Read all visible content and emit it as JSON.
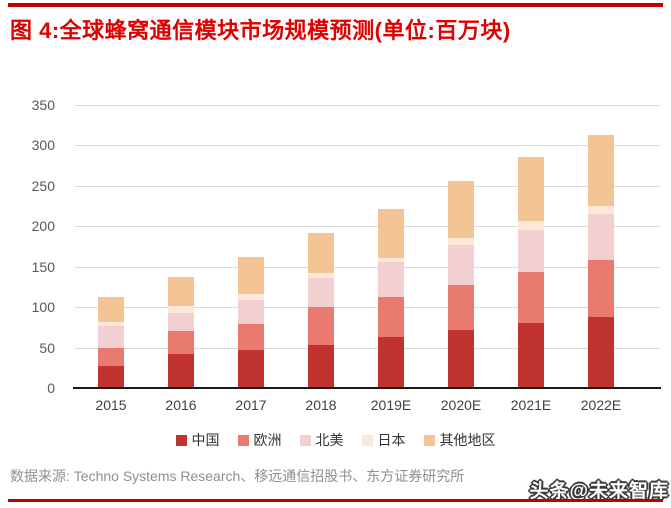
{
  "title": "图 4:全球蜂窝通信模块市场规模预测(单位:百万块)",
  "source": "数据来源: Techno Systems Research、移远通信招股书、东方证券研究所",
  "watermark": "头条@未来智库",
  "colors": {
    "title_red": "#e00000",
    "rule_red": "#c00000",
    "gridline": "#d9d9d9",
    "axis_line": "#1a1a1a",
    "ytick_text": "#595959",
    "xtick_text": "#404040",
    "source_text": "#8f8f8f"
  },
  "chart_data": {
    "type": "bar",
    "stacked": true,
    "title": "全球蜂窝通信模块市场规模预测",
    "unit": "百万块",
    "categories": [
      "2015",
      "2016",
      "2017",
      "2018",
      "2019E",
      "2020E",
      "2021E",
      "2022E"
    ],
    "series": [
      {
        "name": "中国",
        "color": "#c0332f",
        "values": [
          27,
          42,
          47,
          53,
          63,
          72,
          80,
          88
        ]
      },
      {
        "name": "欧洲",
        "color": "#e97a6f",
        "values": [
          23,
          28,
          32,
          47,
          50,
          56,
          64,
          70
        ]
      },
      {
        "name": "北美",
        "color": "#f2cfd1",
        "values": [
          27,
          23,
          30,
          36,
          43,
          49,
          52,
          57
        ]
      },
      {
        "name": "日本",
        "color": "#fbe8da",
        "values": [
          5,
          8,
          7,
          6,
          5,
          8,
          11,
          10
        ]
      },
      {
        "name": "其他地区",
        "color": "#f5c495",
        "values": [
          31,
          36,
          46,
          50,
          61,
          71,
          79,
          88
        ]
      }
    ],
    "totals": [
      113,
      137,
      162,
      192,
      222,
      256,
      286,
      313
    ],
    "ylim": [
      0,
      350
    ],
    "yticks": [
      0,
      50,
      100,
      150,
      200,
      250,
      300,
      350
    ],
    "grid": true,
    "legend_position": "bottom"
  }
}
